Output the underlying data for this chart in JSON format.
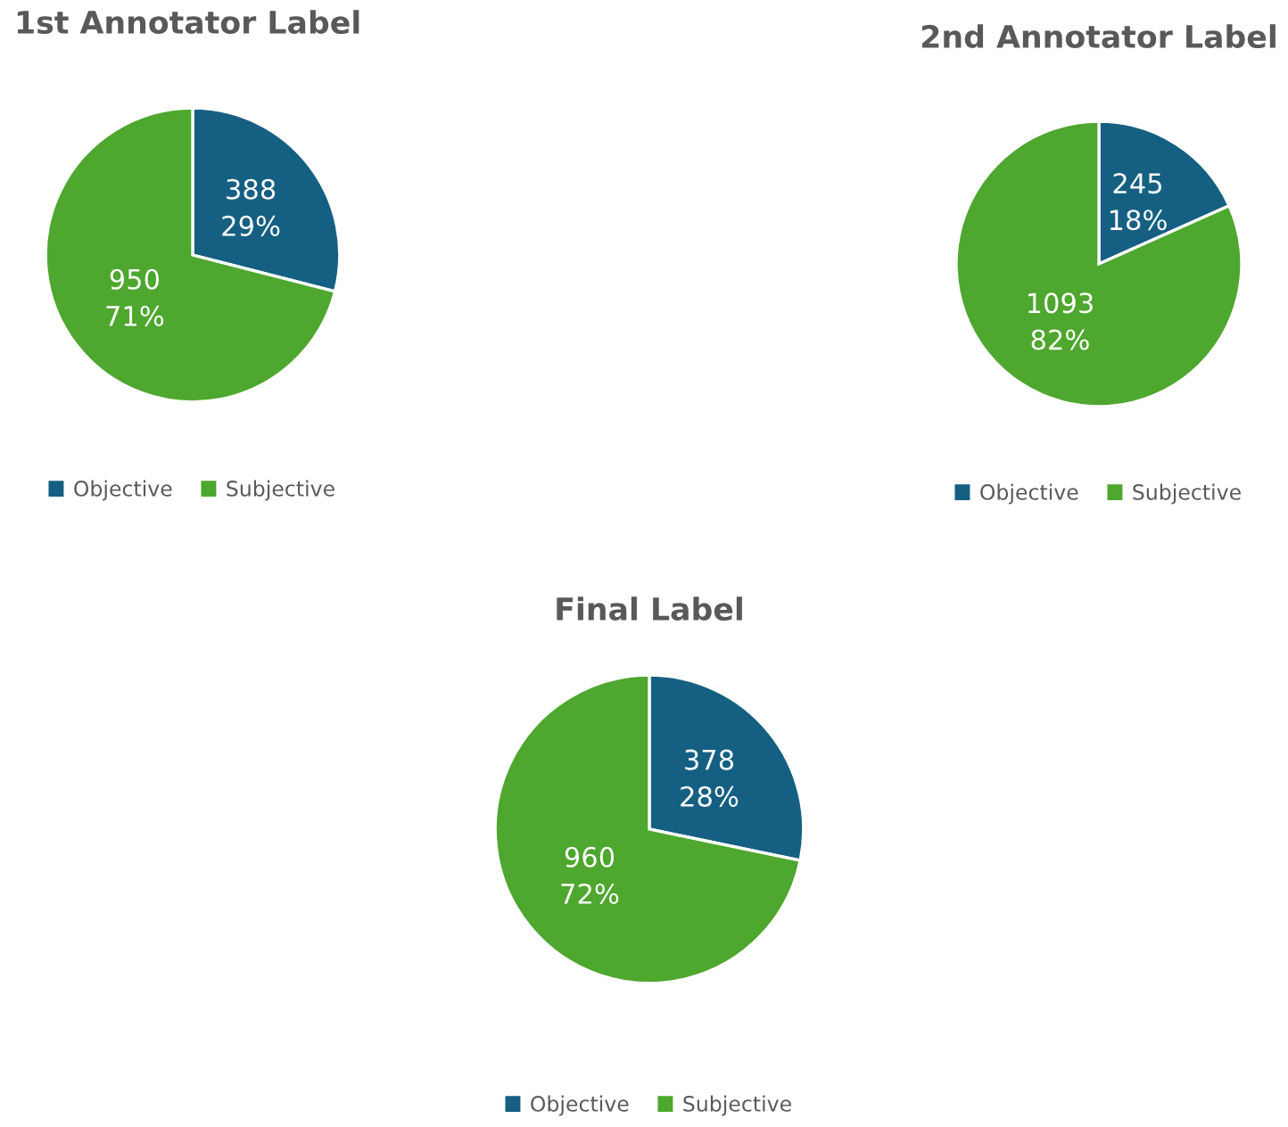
{
  "chart_data": [
    {
      "type": "pie",
      "title": "1st Annotator Label",
      "categories": [
        "Objective",
        "Subjective"
      ],
      "values": [
        388,
        950
      ],
      "colors": [
        "#156082",
        "#4ea72e"
      ],
      "value_labels": [
        "388\n29%",
        "950\n71%"
      ],
      "legend": "bottom"
    },
    {
      "type": "pie",
      "title": "2nd Annotator Label",
      "categories": [
        "Objective",
        "Subjective"
      ],
      "values": [
        245,
        1093
      ],
      "colors": [
        "#156082",
        "#4ea72e"
      ],
      "value_labels": [
        "245\n18%",
        "1093\n82%"
      ],
      "legend": "bottom"
    },
    {
      "type": "pie",
      "title": "Final Label",
      "categories": [
        "Objective",
        "Subjective"
      ],
      "values": [
        378,
        960
      ],
      "colors": [
        "#156082",
        "#4ea72e"
      ],
      "value_labels": [
        "378\n28%",
        "960\n72%"
      ],
      "legend": "bottom"
    }
  ]
}
